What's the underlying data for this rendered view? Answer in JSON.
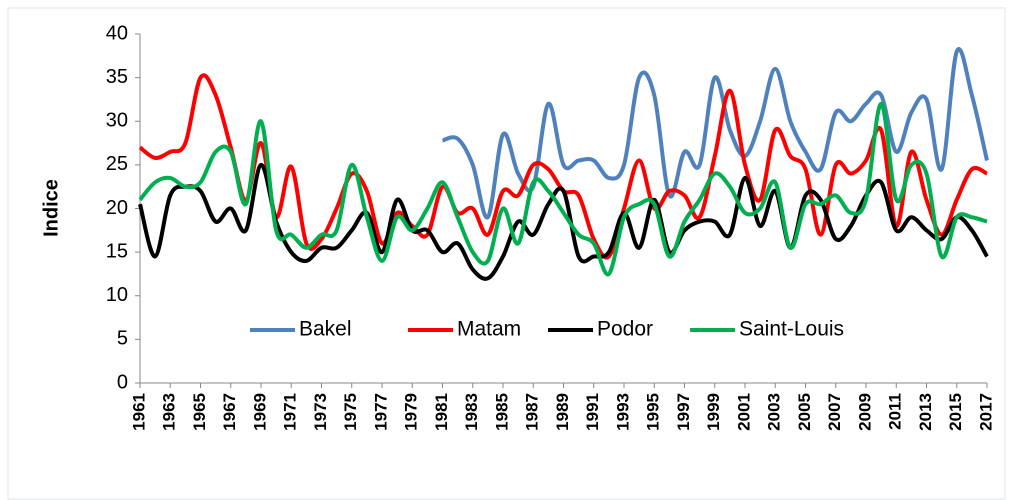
{
  "chart_data": {
    "type": "line",
    "y_label": "Indice",
    "x": [
      1961,
      1962,
      1963,
      1964,
      1965,
      1966,
      1967,
      1968,
      1969,
      1970,
      1971,
      1972,
      1973,
      1974,
      1975,
      1976,
      1977,
      1978,
      1979,
      1980,
      1981,
      1982,
      1983,
      1984,
      1985,
      1986,
      1987,
      1988,
      1989,
      1990,
      1991,
      1992,
      1993,
      1994,
      1995,
      1996,
      1997,
      1998,
      1999,
      2000,
      2001,
      2002,
      2003,
      2004,
      2005,
      2006,
      2007,
      2008,
      2009,
      2010,
      2011,
      2012,
      2013,
      2014,
      2015,
      2016,
      2017
    ],
    "xlim": [
      1961,
      2017
    ],
    "xticks": [
      1961,
      1963,
      1965,
      1967,
      1969,
      1971,
      1973,
      1975,
      1977,
      1979,
      1981,
      1983,
      1985,
      1987,
      1989,
      1991,
      1993,
      1995,
      1997,
      1999,
      2001,
      2003,
      2005,
      2007,
      2009,
      2011,
      2013,
      2015,
      2017
    ],
    "ylim": [
      0,
      40
    ],
    "yticks": [
      0,
      5,
      10,
      15,
      20,
      25,
      30,
      35,
      40
    ],
    "grid": false,
    "legend": "bottom",
    "series": [
      {
        "name": "Bakel",
        "color": "#4f81bd",
        "values": [
          null,
          null,
          null,
          null,
          null,
          null,
          null,
          null,
          null,
          null,
          null,
          null,
          null,
          null,
          null,
          null,
          null,
          null,
          null,
          null,
          27.8,
          28,
          25,
          19,
          28.5,
          24,
          22.5,
          32,
          25,
          25.5,
          25.5,
          23.5,
          25,
          35,
          33,
          21.5,
          26.5,
          25,
          35,
          29,
          26,
          30,
          36,
          30,
          26.5,
          24.5,
          31,
          30,
          32,
          33,
          26.5,
          31,
          32.5,
          24.5,
          38,
          33,
          25.5
        ]
      },
      {
        "name": "Matam",
        "color": "#ff0000",
        "values": [
          27,
          25.8,
          26.5,
          27.5,
          35,
          33,
          27,
          21,
          27.5,
          19,
          24.8,
          16,
          16.5,
          20,
          24,
          22,
          16,
          19.5,
          18,
          17,
          22.5,
          19.5,
          20,
          17,
          22,
          21.5,
          25,
          24.5,
          22,
          21.5,
          16.5,
          14.5,
          20,
          25.5,
          20,
          22,
          21.5,
          19,
          26,
          33.5,
          25,
          21,
          29,
          26,
          24.5,
          17,
          25,
          24,
          25.5,
          29,
          18,
          26.5,
          21,
          17,
          21,
          24.5,
          24
        ]
      },
      {
        "name": "Podor",
        "color": "#000000",
        "values": [
          20.5,
          14.5,
          21.5,
          22.5,
          22,
          18.5,
          20,
          17.5,
          25,
          18.5,
          15,
          14,
          15.5,
          15.5,
          17.5,
          19.5,
          15,
          21,
          17.5,
          17.5,
          15,
          16,
          13,
          12,
          14.5,
          18.5,
          17,
          20.5,
          22,
          14.5,
          14.5,
          15,
          19.5,
          15.5,
          21,
          15,
          17.5,
          18.5,
          18.5,
          17,
          23.5,
          18,
          22,
          15.5,
          21.5,
          21,
          16.5,
          18,
          21.5,
          23,
          17.5,
          19,
          17.5,
          16.5,
          19,
          17.5,
          14.5
        ]
      },
      {
        "name": "Saint-Louis",
        "color": "#00b050",
        "values": [
          21,
          23,
          23.5,
          22.5,
          23,
          26.5,
          26.5,
          20.5,
          30,
          17.5,
          17,
          15.5,
          17,
          17.5,
          25,
          19,
          14,
          19,
          17.5,
          20,
          23,
          19,
          15,
          14,
          20,
          16,
          23,
          22,
          19.5,
          17,
          16,
          12.5,
          19,
          20.5,
          20.5,
          14.5,
          18.5,
          21,
          24,
          22.5,
          19.5,
          20,
          23,
          15.5,
          20.5,
          20.5,
          21.5,
          19.5,
          21,
          32,
          21,
          25,
          24,
          14.5,
          19,
          19,
          18.5
        ]
      }
    ]
  }
}
